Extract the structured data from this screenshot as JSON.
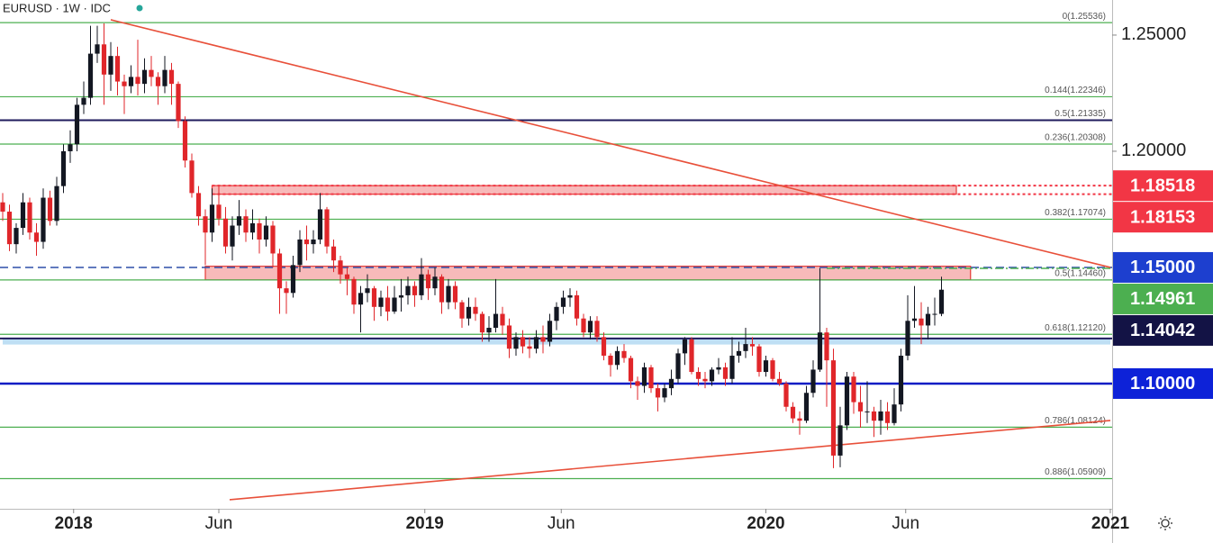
{
  "chart_data": {
    "type": "candlestick",
    "title": "EURUSD · 1W · IDC",
    "up_color": "#131722",
    "down_color": "#e0262a",
    "xlim": [
      0,
      164
    ],
    "ylim": [
      1.0461,
      1.2651
    ],
    "yticks": [
      {
        "value": 1.2,
        "label": "1.20000"
      },
      {
        "value": 1.25,
        "label": "1.25000"
      }
    ],
    "xticks": [
      {
        "value": 10.5,
        "label": "2018",
        "bold": true
      },
      {
        "value": 32,
        "label": "Jun",
        "bold": false
      },
      {
        "value": 62.5,
        "label": "2019",
        "bold": true
      },
      {
        "value": 82.7,
        "label": "Jun",
        "bold": false
      },
      {
        "value": 113,
        "label": "2020",
        "bold": true
      },
      {
        "value": 133.7,
        "label": "Jun",
        "bold": false
      },
      {
        "value": 164,
        "label": "2021",
        "bold": true
      }
    ],
    "candles": [
      [
        1.178,
        1.182,
        1.17,
        1.174
      ],
      [
        1.174,
        1.177,
        1.157,
        1.16
      ],
      [
        1.16,
        1.169,
        1.156,
        1.167
      ],
      [
        1.167,
        1.182,
        1.164,
        1.178
      ],
      [
        1.178,
        1.18,
        1.162,
        1.165
      ],
      [
        1.165,
        1.169,
        1.155,
        1.161
      ],
      [
        1.161,
        1.184,
        1.158,
        1.18
      ],
      [
        1.18,
        1.183,
        1.168,
        1.17
      ],
      [
        1.17,
        1.189,
        1.168,
        1.185
      ],
      [
        1.185,
        1.203,
        1.182,
        1.2
      ],
      [
        1.2,
        1.209,
        1.195,
        1.203
      ],
      [
        1.203,
        1.223,
        1.2,
        1.22
      ],
      [
        1.22,
        1.23,
        1.216,
        1.223
      ],
      [
        1.223,
        1.254,
        1.22,
        1.242
      ],
      [
        1.242,
        1.254,
        1.238,
        1.246
      ],
      [
        1.246,
        1.255,
        1.22,
        1.233
      ],
      [
        1.233,
        1.247,
        1.226,
        1.241
      ],
      [
        1.241,
        1.245,
        1.224,
        1.23
      ],
      [
        1.23,
        1.233,
        1.216,
        1.228
      ],
      [
        1.228,
        1.237,
        1.225,
        1.232
      ],
      [
        1.232,
        1.248,
        1.224,
        1.229
      ],
      [
        1.229,
        1.24,
        1.225,
        1.235
      ],
      [
        1.235,
        1.241,
        1.228,
        1.232
      ],
      [
        1.232,
        1.234,
        1.22,
        1.228
      ],
      [
        1.228,
        1.241,
        1.225,
        1.235
      ],
      [
        1.235,
        1.238,
        1.22,
        1.229
      ],
      [
        1.229,
        1.23,
        1.21,
        1.213
      ],
      [
        1.213,
        1.215,
        1.193,
        1.196
      ],
      [
        1.196,
        1.199,
        1.18,
        1.182
      ],
      [
        1.182,
        1.185,
        1.168,
        1.172
      ],
      [
        1.172,
        1.175,
        1.151,
        1.165
      ],
      [
        1.165,
        1.184,
        1.161,
        1.177
      ],
      [
        1.177,
        1.185,
        1.168,
        1.171
      ],
      [
        1.171,
        1.176,
        1.156,
        1.159
      ],
      [
        1.159,
        1.172,
        1.153,
        1.168
      ],
      [
        1.168,
        1.179,
        1.164,
        1.172
      ],
      [
        1.172,
        1.175,
        1.161,
        1.165
      ],
      [
        1.165,
        1.175,
        1.162,
        1.169
      ],
      [
        1.169,
        1.171,
        1.156,
        1.162
      ],
      [
        1.162,
        1.172,
        1.159,
        1.168
      ],
      [
        1.168,
        1.17,
        1.15,
        1.156
      ],
      [
        1.156,
        1.158,
        1.13,
        1.141
      ],
      [
        1.141,
        1.144,
        1.13,
        1.139
      ],
      [
        1.139,
        1.155,
        1.137,
        1.151
      ],
      [
        1.151,
        1.166,
        1.148,
        1.162
      ],
      [
        1.162,
        1.168,
        1.153,
        1.16
      ],
      [
        1.16,
        1.166,
        1.156,
        1.162
      ],
      [
        1.162,
        1.182,
        1.16,
        1.175
      ],
      [
        1.175,
        1.176,
        1.156,
        1.159
      ],
      [
        1.159,
        1.162,
        1.148,
        1.153
      ],
      [
        1.153,
        1.155,
        1.143,
        1.147
      ],
      [
        1.147,
        1.15,
        1.138,
        1.145
      ],
      [
        1.145,
        1.146,
        1.13,
        1.134
      ],
      [
        1.134,
        1.142,
        1.122,
        1.139
      ],
      [
        1.139,
        1.147,
        1.135,
        1.141
      ],
      [
        1.141,
        1.142,
        1.127,
        1.133
      ],
      [
        1.133,
        1.14,
        1.129,
        1.137
      ],
      [
        1.137,
        1.142,
        1.127,
        1.131
      ],
      [
        1.131,
        1.142,
        1.13,
        1.137
      ],
      [
        1.137,
        1.145,
        1.131,
        1.138
      ],
      [
        1.138,
        1.146,
        1.134,
        1.142
      ],
      [
        1.142,
        1.144,
        1.133,
        1.138
      ],
      [
        1.138,
        1.154,
        1.136,
        1.147
      ],
      [
        1.147,
        1.149,
        1.136,
        1.141
      ],
      [
        1.141,
        1.15,
        1.138,
        1.146
      ],
      [
        1.146,
        1.147,
        1.13,
        1.135
      ],
      [
        1.135,
        1.145,
        1.132,
        1.142
      ],
      [
        1.142,
        1.144,
        1.132,
        1.135
      ],
      [
        1.135,
        1.136,
        1.124,
        1.128
      ],
      [
        1.128,
        1.137,
        1.125,
        1.133
      ],
      [
        1.133,
        1.137,
        1.127,
        1.13
      ],
      [
        1.13,
        1.131,
        1.118,
        1.122
      ],
      [
        1.122,
        1.129,
        1.118,
        1.124
      ],
      [
        1.124,
        1.145,
        1.122,
        1.13
      ],
      [
        1.13,
        1.133,
        1.121,
        1.125
      ],
      [
        1.125,
        1.128,
        1.111,
        1.115
      ],
      [
        1.115,
        1.122,
        1.112,
        1.12
      ],
      [
        1.12,
        1.123,
        1.113,
        1.116
      ],
      [
        1.116,
        1.12,
        1.111,
        1.115
      ],
      [
        1.115,
        1.123,
        1.113,
        1.12
      ],
      [
        1.12,
        1.125,
        1.113,
        1.118
      ],
      [
        1.118,
        1.13,
        1.116,
        1.127
      ],
      [
        1.127,
        1.135,
        1.123,
        1.133
      ],
      [
        1.133,
        1.14,
        1.13,
        1.137
      ],
      [
        1.137,
        1.141,
        1.133,
        1.138
      ],
      [
        1.138,
        1.14,
        1.125,
        1.128
      ],
      [
        1.128,
        1.13,
        1.12,
        1.122
      ],
      [
        1.122,
        1.129,
        1.119,
        1.127
      ],
      [
        1.127,
        1.129,
        1.118,
        1.12
      ],
      [
        1.12,
        1.122,
        1.11,
        1.112
      ],
      [
        1.112,
        1.113,
        1.103,
        1.108
      ],
      [
        1.108,
        1.116,
        1.106,
        1.114
      ],
      [
        1.114,
        1.117,
        1.109,
        1.111
      ],
      [
        1.111,
        1.112,
        1.098,
        1.101
      ],
      [
        1.101,
        1.103,
        1.093,
        1.099
      ],
      [
        1.099,
        1.109,
        1.096,
        1.107
      ],
      [
        1.107,
        1.108,
        1.096,
        1.098
      ],
      [
        1.098,
        1.1,
        1.088,
        1.094
      ],
      [
        1.094,
        1.1,
        1.092,
        1.098
      ],
      [
        1.098,
        1.106,
        1.095,
        1.102
      ],
      [
        1.102,
        1.115,
        1.1,
        1.113
      ],
      [
        1.113,
        1.12,
        1.108,
        1.119
      ],
      [
        1.119,
        1.12,
        1.104,
        1.105
      ],
      [
        1.105,
        1.107,
        1.099,
        1.102
      ],
      [
        1.102,
        1.105,
        1.098,
        1.101
      ],
      [
        1.101,
        1.107,
        1.099,
        1.106
      ],
      [
        1.106,
        1.111,
        1.104,
        1.107
      ],
      [
        1.107,
        1.109,
        1.099,
        1.102
      ],
      [
        1.102,
        1.12,
        1.1,
        1.112
      ],
      [
        1.112,
        1.118,
        1.109,
        1.114
      ],
      [
        1.114,
        1.124,
        1.111,
        1.117
      ],
      [
        1.117,
        1.12,
        1.112,
        1.116
      ],
      [
        1.116,
        1.117,
        1.103,
        1.105
      ],
      [
        1.105,
        1.112,
        1.103,
        1.11
      ],
      [
        1.11,
        1.111,
        1.101,
        1.102
      ],
      [
        1.102,
        1.105,
        1.099,
        1.1
      ],
      [
        1.1,
        1.101,
        1.088,
        1.09
      ],
      [
        1.09,
        1.092,
        1.083,
        1.085
      ],
      [
        1.085,
        1.088,
        1.078,
        1.084
      ],
      [
        1.084,
        1.099,
        1.083,
        1.096
      ],
      [
        1.096,
        1.11,
        1.094,
        1.106
      ],
      [
        1.106,
        1.1496,
        1.105,
        1.122
      ],
      [
        1.122,
        1.124,
        1.09,
        1.11
      ],
      [
        1.11,
        1.115,
        1.0636,
        1.069
      ],
      [
        1.069,
        1.09,
        1.064,
        1.082
      ],
      [
        1.082,
        1.105,
        1.08,
        1.103
      ],
      [
        1.103,
        1.105,
        1.087,
        1.092
      ],
      [
        1.092,
        1.099,
        1.081,
        1.088
      ],
      [
        1.088,
        1.101,
        1.083,
        1.088
      ],
      [
        1.088,
        1.09,
        1.077,
        1.084
      ],
      [
        1.084,
        1.093,
        1.078,
        1.088
      ],
      [
        1.088,
        1.092,
        1.08,
        1.083
      ],
      [
        1.083,
        1.098,
        1.082,
        1.091
      ],
      [
        1.091,
        1.115,
        1.088,
        1.112
      ],
      [
        1.112,
        1.138,
        1.11,
        1.127
      ],
      [
        1.127,
        1.142,
        1.124,
        1.128
      ],
      [
        1.128,
        1.135,
        1.117,
        1.125
      ],
      [
        1.125,
        1.133,
        1.119,
        1.13
      ],
      [
        1.13,
        1.137,
        1.125,
        1.13
      ],
      [
        1.13,
        1.146,
        1.129,
        1.1404
      ]
    ],
    "zones": [
      {
        "from": 1.1168,
        "to": 1.1198,
        "start": 0,
        "end": 164,
        "fill": "#a9d4f0",
        "stroke": "none"
      },
      {
        "from": 1.1446,
        "to": 1.1505,
        "start": 30,
        "end": 143.3,
        "fill": "#f4a3a3",
        "stroke": "#e53935"
      },
      {
        "from": 1.1815,
        "to": 1.1852,
        "start": 31,
        "end": 141.2,
        "fill": "#f4a3a3",
        "stroke": "#e53935"
      }
    ],
    "levels": [
      {
        "value": 1.25536,
        "label": "0(1.25536)",
        "color": "#4caf50",
        "style": "solid",
        "width": 1.2
      },
      {
        "value": 1.22346,
        "label": "0.144(1.22346)",
        "color": "#4caf50",
        "style": "solid",
        "width": 1.2
      },
      {
        "value": 1.21335,
        "label": "0.5(1.21335)",
        "color": "#1f1b5c",
        "style": "solid",
        "width": 2
      },
      {
        "value": 1.20308,
        "label": "0.236(1.20308)",
        "color": "#4caf50",
        "style": "solid",
        "width": 1.2
      },
      {
        "value": 1.18518,
        "color": "#f23645",
        "style": "dotted",
        "width": 2,
        "start": 31
      },
      {
        "value": 1.18153,
        "color": "#f23645",
        "style": "dotted",
        "width": 2,
        "start": 31
      },
      {
        "value": 1.17074,
        "label": "0.382(1.17074)",
        "color": "#4caf50",
        "style": "solid",
        "width": 1.2
      },
      {
        "value": 1.15,
        "color": "#2f4fa8",
        "style": "dashed",
        "width": 1.5
      },
      {
        "value": 1.14961,
        "color": "#4caf50",
        "style": "dashdot",
        "width": 1.5,
        "start": 122
      },
      {
        "value": 1.1446,
        "label": "0.5(1.14460)",
        "color": "#4caf50",
        "style": "solid",
        "width": 1.2
      },
      {
        "value": 1.1212,
        "label": "0.618(1.12120)",
        "color": "#4caf50",
        "style": "solid",
        "width": 1.2
      },
      {
        "value": 1.1194,
        "color": "#1f1b5c",
        "style": "solid",
        "width": 2
      },
      {
        "value": 1.1,
        "color": "#0a1cc4",
        "style": "solid",
        "width": 2.5
      },
      {
        "value": 1.08124,
        "label": "0.786(1.08124)",
        "color": "#4caf50",
        "style": "solid",
        "width": 1.2
      },
      {
        "value": 1.05909,
        "label": "0.886(1.05909)",
        "color": "#4caf50",
        "style": "solid",
        "width": 1.2
      }
    ],
    "trendlines": [
      {
        "x": [
          16,
          164
        ],
        "y": [
          1.2566,
          1.15
        ],
        "color": "#e8503a"
      },
      {
        "x": [
          33.6,
          164
        ],
        "y": [
          1.05,
          1.0841
        ],
        "color": "#e8503a"
      }
    ],
    "price_labels": [
      {
        "value": 1.18518,
        "label": "1.18518",
        "color": "#f23645"
      },
      {
        "value": 1.18153,
        "label": "1.18153",
        "color": "#f23645"
      },
      {
        "value": 1.15,
        "label": "1.15000",
        "color": "#1d3fcf"
      },
      {
        "value": 1.14961,
        "label": "1.14961",
        "color": "#4caf50"
      },
      {
        "value": 1.14042,
        "label": "1.14042",
        "color": "#131345"
      },
      {
        "value": 1.1,
        "label": "1.10000",
        "color": "#0d22d8"
      }
    ]
  }
}
